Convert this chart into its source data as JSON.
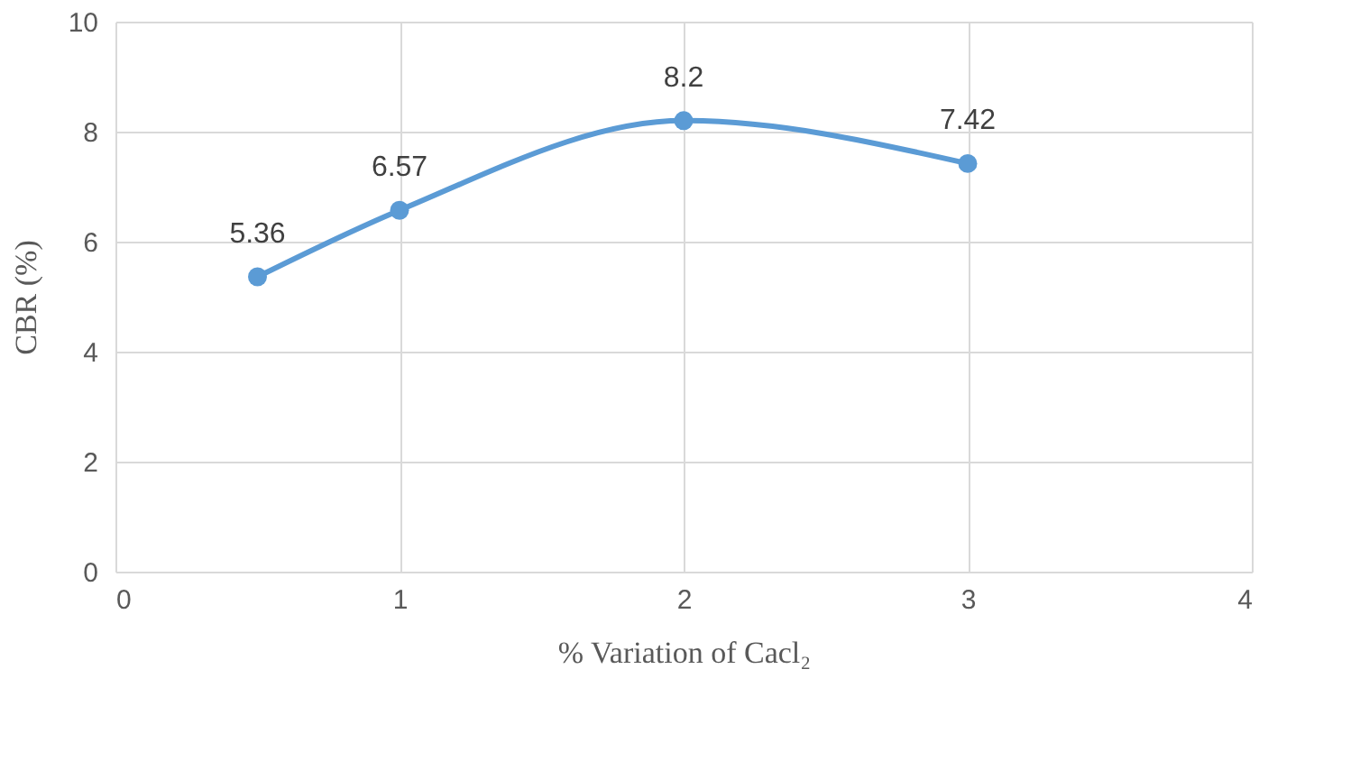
{
  "chart_data": {
    "type": "line",
    "xlabel": "% Variation of Cacl₂",
    "ylabel": "CBR (%)",
    "x": [
      0.5,
      1,
      2,
      3
    ],
    "series": [
      {
        "color": "#5b9bd5",
        "values": [
          5.36,
          6.57,
          8.2,
          7.42
        ]
      }
    ],
    "xlim": [
      0,
      4
    ],
    "xticks": [
      0,
      1,
      2,
      3,
      4
    ],
    "ylim": [
      0,
      10
    ],
    "yticks": [
      0,
      2,
      4,
      6,
      8,
      10
    ],
    "grid": true,
    "marker": "circle",
    "line_style": "solid",
    "data_labels": true
  }
}
